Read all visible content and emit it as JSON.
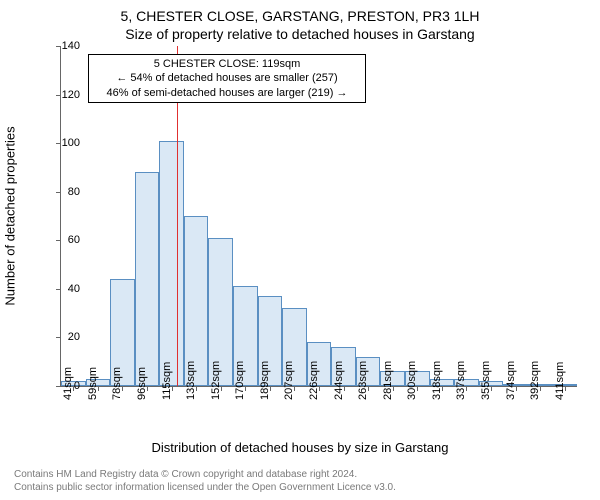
{
  "title": "5, CHESTER CLOSE, GARSTANG, PRESTON, PR3 1LH",
  "subtitle": "Size of property relative to detached houses in Garstang",
  "chart": {
    "type": "histogram",
    "x_categories": [
      "41sqm",
      "59sqm",
      "78sqm",
      "96sqm",
      "115sqm",
      "133sqm",
      "152sqm",
      "170sqm",
      "189sqm",
      "207sqm",
      "226sqm",
      "244sqm",
      "263sqm",
      "281sqm",
      "300sqm",
      "318sqm",
      "337sqm",
      "355sqm",
      "374sqm",
      "392sqm",
      "411sqm"
    ],
    "values": [
      2,
      3,
      44,
      88,
      101,
      70,
      61,
      41,
      37,
      32,
      18,
      16,
      12,
      6,
      6,
      3,
      3,
      2,
      1,
      0,
      1
    ],
    "y_ticks": [
      0,
      20,
      40,
      60,
      80,
      100,
      120,
      140
    ],
    "ylim_max": 140,
    "bar_fill": "#dae8f5",
    "bar_border": "#5a8fc2",
    "indicator_value_sqm": 119,
    "indicator_color": "#e03030",
    "background": "#ffffff",
    "axis_color": "#666666",
    "tick_fontsize": 11,
    "title_fontsize": 14,
    "label_fontsize": 13,
    "y_label": "Number of detached properties",
    "x_label": "Distribution of detached houses by size in Garstang",
    "annotation": {
      "line1": "5 CHESTER CLOSE: 119sqm",
      "line2": "← 54% of detached houses are smaller (257)",
      "line3": "46% of semi-detached houses are larger (219) →",
      "border_color": "#000000",
      "bg": "#ffffff"
    }
  },
  "copyright": {
    "line1": "Contains HM Land Registry data © Crown copyright and database right 2024.",
    "line2": "Contains public sector information licensed under the Open Government Licence v3.0."
  }
}
